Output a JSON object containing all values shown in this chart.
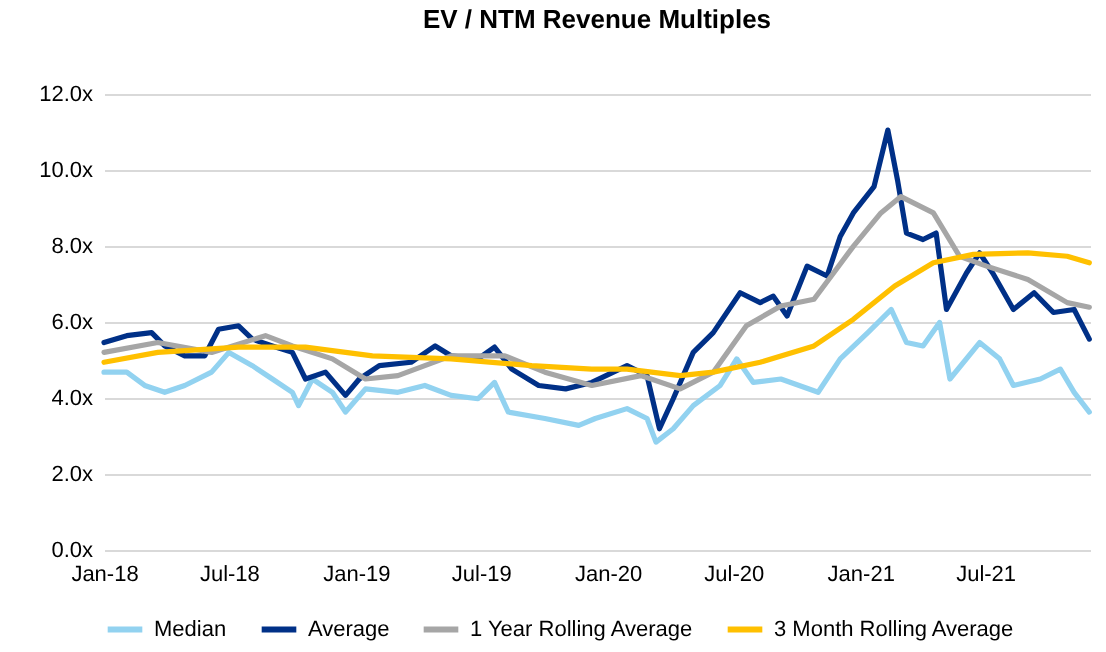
{
  "chart_data": {
    "type": "line",
    "title": "EV / NTM Revenue Multiples",
    "xlim": [
      "2018-01-01",
      "2021-11-30"
    ],
    "xticks": [
      {
        "value": "2018-01-01",
        "label": "Jan-18"
      },
      {
        "value": "2018-07-01",
        "label": "Jul-18"
      },
      {
        "value": "2019-01-01",
        "label": "Jan-19"
      },
      {
        "value": "2019-07-01",
        "label": "Jul-19"
      },
      {
        "value": "2020-01-01",
        "label": "Jan-20"
      },
      {
        "value": "2020-07-01",
        "label": "Jul-20"
      },
      {
        "value": "2021-01-01",
        "label": "Jan-21"
      },
      {
        "value": "2021-07-01",
        "label": "Jul-21"
      }
    ],
    "ylim": [
      0,
      12
    ],
    "yticks": [
      {
        "value": 0,
        "label": "0.0x"
      },
      {
        "value": 2,
        "label": "2.0x"
      },
      {
        "value": 4,
        "label": "4.0x"
      },
      {
        "value": 6,
        "label": "6.0x"
      },
      {
        "value": 8,
        "label": "8.0x"
      },
      {
        "value": 10,
        "label": "10.0x"
      },
      {
        "value": 12,
        "label": "12.0x"
      }
    ],
    "grid": "y",
    "legend": "bottom",
    "line_style": "solid",
    "marker": "none",
    "series": [
      {
        "name": "Median",
        "color": "#92d2f0",
        "x": [
          "2018-01-01",
          "2018-02-03",
          "2018-03-01",
          "2018-03-30",
          "2018-04-28",
          "2018-06-06",
          "2018-07-01",
          "2018-08-04",
          "2018-09-02",
          "2018-10-01",
          "2018-10-10",
          "2018-10-30",
          "2018-11-28",
          "2018-12-17",
          "2019-01-15",
          "2019-03-03",
          "2019-04-11",
          "2019-05-19",
          "2019-06-27",
          "2019-07-21",
          "2019-08-10",
          "2019-10-02",
          "2019-11-20",
          "2019-12-14",
          "2020-01-29",
          "2020-02-27",
          "2020-03-11",
          "2020-04-05",
          "2020-05-04",
          "2020-06-12",
          "2020-07-06",
          "2020-07-30",
          "2020-09-08",
          "2020-11-01",
          "2020-12-03",
          "2021-01-12",
          "2021-02-15",
          "2021-03-09",
          "2021-04-02",
          "2021-04-26",
          "2021-05-11",
          "2021-06-23",
          "2021-07-22",
          "2021-08-11",
          "2021-09-19",
          "2021-10-18",
          "2021-11-07",
          "2021-11-29"
        ],
        "values": [
          4.68,
          4.68,
          4.33,
          4.15,
          4.33,
          4.68,
          5.2,
          4.85,
          4.5,
          4.15,
          3.8,
          4.5,
          4.15,
          3.63,
          4.24,
          4.15,
          4.33,
          4.07,
          3.98,
          4.41,
          3.63,
          3.46,
          3.28,
          3.46,
          3.72,
          3.46,
          2.84,
          3.19,
          3.8,
          4.33,
          5.03,
          4.41,
          4.5,
          4.15,
          5.03,
          5.72,
          6.33,
          5.46,
          5.37,
          5.99,
          4.5,
          5.46,
          5.03,
          4.33,
          4.5,
          4.76,
          4.15,
          3.63
        ]
      },
      {
        "name": "Average",
        "color": "#003087",
        "x": [
          "2018-01-01",
          "2018-02-03",
          "2018-03-11",
          "2018-03-30",
          "2018-04-28",
          "2018-05-27",
          "2018-06-16",
          "2018-07-15",
          "2018-08-04",
          "2018-09-02",
          "2018-10-01",
          "2018-10-20",
          "2018-11-18",
          "2018-12-17",
          "2019-01-06",
          "2019-02-04",
          "2019-03-22",
          "2019-04-26",
          "2019-05-19",
          "2019-06-27",
          "2019-07-21",
          "2019-08-15",
          "2019-09-23",
          "2019-11-01",
          "2019-12-09",
          "2020-01-29",
          "2020-02-27",
          "2020-03-16",
          "2020-04-05",
          "2020-05-04",
          "2020-06-02",
          "2020-07-11",
          "2020-08-09",
          "2020-08-28",
          "2020-09-17",
          "2020-10-16",
          "2020-11-14",
          "2020-12-03",
          "2020-12-22",
          "2021-01-21",
          "2021-02-10",
          "2021-02-24",
          "2021-03-09",
          "2021-04-02",
          "2021-04-21",
          "2021-05-06",
          "2021-06-04",
          "2021-06-23",
          "2021-07-12",
          "2021-08-11",
          "2021-09-10",
          "2021-10-08",
          "2021-11-07",
          "2021-11-29"
        ],
        "values": [
          5.46,
          5.64,
          5.72,
          5.37,
          5.11,
          5.11,
          5.81,
          5.9,
          5.55,
          5.37,
          5.2,
          4.5,
          4.68,
          4.07,
          4.5,
          4.85,
          4.94,
          5.37,
          5.11,
          5.03,
          5.34,
          4.76,
          4.33,
          4.24,
          4.41,
          4.85,
          4.59,
          3.19,
          3.98,
          5.2,
          5.72,
          6.77,
          6.51,
          6.68,
          6.16,
          7.47,
          7.21,
          8.25,
          8.87,
          9.56,
          11.05,
          9.74,
          8.34,
          8.17,
          8.34,
          6.33,
          7.29,
          7.82,
          7.29,
          6.33,
          6.77,
          6.25,
          6.33,
          5.55
        ]
      },
      {
        "name": "1 Year Rolling Average",
        "color": "#a6a6a6",
        "x": [
          "2018-01-01",
          "2018-03-20",
          "2018-06-06",
          "2018-08-23",
          "2018-10-01",
          "2018-11-28",
          "2019-01-15",
          "2019-03-03",
          "2019-05-19",
          "2019-08-05",
          "2019-10-02",
          "2019-12-09",
          "2020-02-18",
          "2020-04-15",
          "2020-06-02",
          "2020-07-20",
          "2020-09-08",
          "2020-10-26",
          "2020-12-22",
          "2021-01-31",
          "2021-03-01",
          "2021-04-17",
          "2021-05-25",
          "2021-07-03",
          "2021-09-01",
          "2021-10-28",
          "2021-11-29"
        ],
        "values": [
          5.2,
          5.46,
          5.2,
          5.64,
          5.37,
          5.03,
          4.5,
          4.59,
          5.11,
          5.11,
          4.68,
          4.33,
          4.59,
          4.24,
          4.68,
          5.9,
          6.42,
          6.6,
          7.99,
          8.87,
          9.3,
          8.87,
          7.73,
          7.47,
          7.12,
          6.51,
          6.39
        ]
      },
      {
        "name": "3 Month Rolling Average",
        "color": "#ffc000",
        "x": [
          "2018-01-01",
          "2018-03-20",
          "2018-07-15",
          "2018-10-20",
          "2019-01-25",
          "2019-05-19",
          "2019-09-13",
          "2019-12-09",
          "2020-01-29",
          "2020-04-15",
          "2020-06-02",
          "2020-08-09",
          "2020-10-26",
          "2020-12-22",
          "2021-02-20",
          "2021-04-17",
          "2021-06-14",
          "2021-09-01",
          "2021-10-28",
          "2021-11-29"
        ],
        "values": [
          4.94,
          5.2,
          5.34,
          5.34,
          5.11,
          5.03,
          4.85,
          4.76,
          4.76,
          4.59,
          4.68,
          4.94,
          5.37,
          6.07,
          6.95,
          7.56,
          7.78,
          7.82,
          7.73,
          7.56
        ]
      }
    ]
  }
}
